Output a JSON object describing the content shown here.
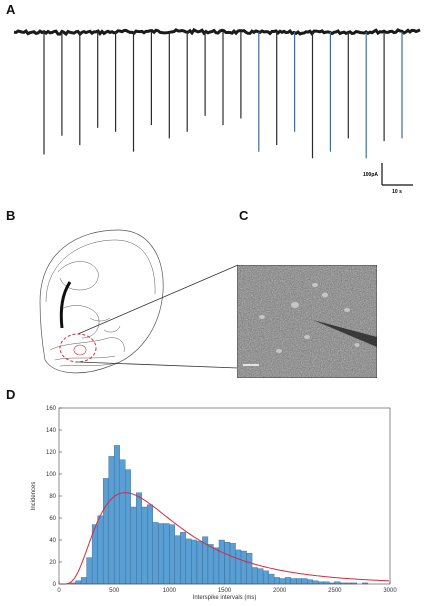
{
  "panels": {
    "a": "A",
    "b": "B",
    "c": "C",
    "d": "D"
  },
  "trace": {
    "scale_current": "100pA",
    "scale_time": "10 s",
    "spike_depths": [
      0.92,
      0.78,
      0.85,
      0.72,
      0.75,
      0.9,
      0.7,
      0.8,
      0.75,
      0.63,
      0.7,
      0.65,
      0.9,
      0.85,
      0.75,
      0.95,
      0.9,
      0.8,
      0.95,
      0.82,
      0.8
    ],
    "trace_color": "#1a1a1a",
    "spike_color_dark": "#2b2b2b",
    "spike_color_blue": "#3f6e96"
  },
  "photo": {
    "scale_bar": true
  },
  "chart_data": {
    "type": "bar",
    "xlabel": "Interspike intervals (ms)",
    "ylabel": "Incidences",
    "xlim": [
      0,
      3000
    ],
    "ylim": [
      0,
      160
    ],
    "xticks": [
      0,
      500,
      1000,
      1500,
      2000,
      2500,
      3000
    ],
    "yticks": [
      0,
      20,
      40,
      60,
      80,
      100,
      120,
      140,
      160
    ],
    "bin_width": 50,
    "bin_start": 0,
    "values": [
      0,
      0,
      1,
      3,
      6,
      24,
      54,
      62,
      96,
      116,
      126,
      113,
      104,
      70,
      83,
      70,
      72,
      56,
      55,
      55,
      54,
      44,
      47,
      41,
      40,
      39,
      43,
      36,
      33,
      40,
      38,
      37,
      31,
      30,
      28,
      15,
      14,
      12,
      9,
      6,
      5,
      6,
      5,
      5,
      5,
      4,
      3,
      2,
      2,
      1,
      2,
      1,
      1,
      1,
      0,
      1,
      0,
      0,
      0,
      0
    ],
    "fit_curve": {
      "type": "lognormal",
      "peak_x": 600,
      "peak_y": 83,
      "color": "#d8283c"
    },
    "bar_color": "#5a9fd4",
    "bar_edge_color": "#2f5d85"
  }
}
